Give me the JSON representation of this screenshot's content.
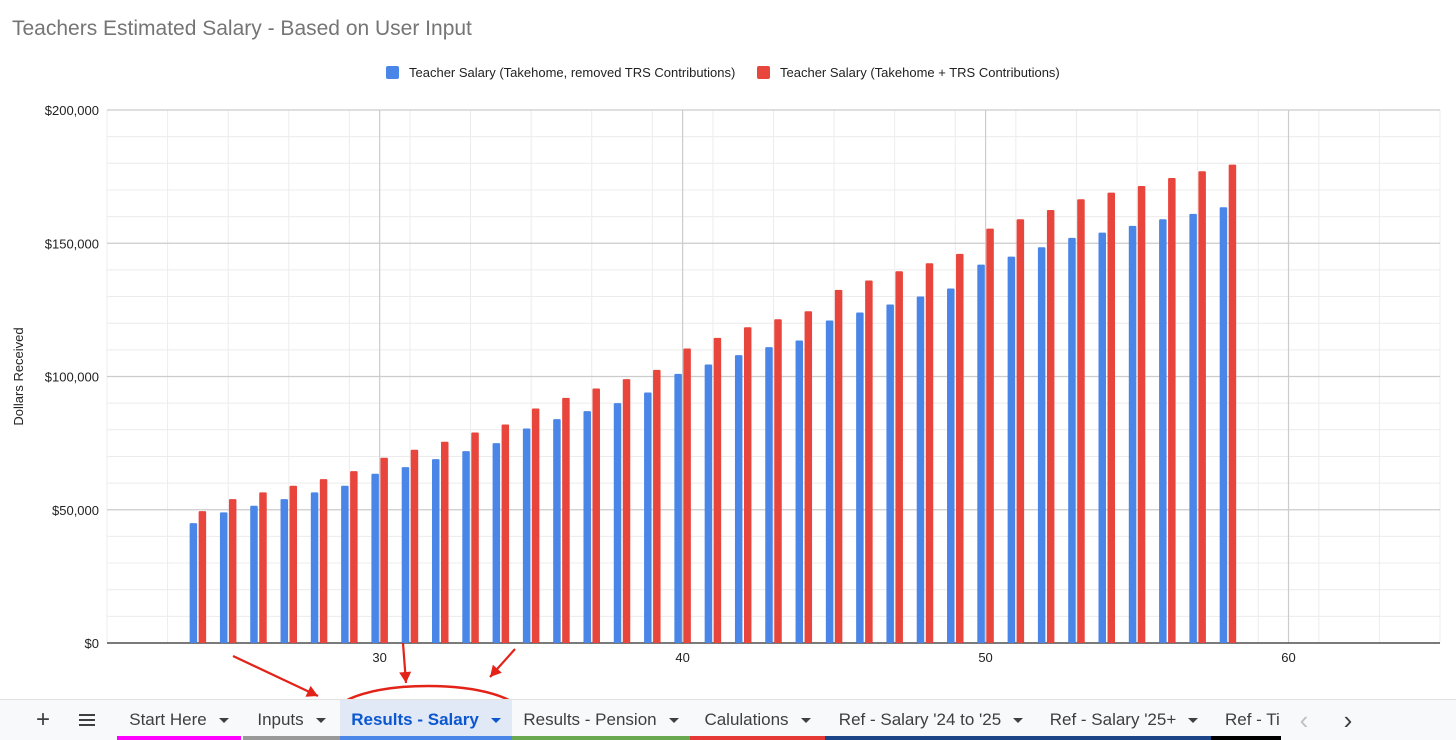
{
  "chart_data": {
    "type": "bar",
    "title": "Teachers Estimated Salary - Based on User Input",
    "ylabel": "Dollars Received",
    "xlabel": "",
    "x": [
      24,
      25,
      26,
      27,
      28,
      29,
      30,
      31,
      32,
      33,
      34,
      35,
      36,
      37,
      38,
      39,
      40,
      41,
      42,
      43,
      44,
      45,
      46,
      47,
      48,
      49,
      50,
      51,
      52,
      53,
      54,
      55,
      56,
      57,
      58
    ],
    "xlim": [
      21,
      65
    ],
    "ylim": [
      0,
      200000
    ],
    "x_ticks": [
      30,
      40,
      50,
      60
    ],
    "x_tick_labels": [
      "30",
      "40",
      "50",
      "60"
    ],
    "y_ticks": [
      0,
      50000,
      100000,
      150000,
      200000
    ],
    "y_tick_labels": [
      "$0",
      "$50,000",
      "$100,000",
      "$150,000",
      "$200,000"
    ],
    "grid": true,
    "legend_position": "top",
    "series": [
      {
        "name": "Teacher Salary (Takehome, removed TRS Contributions)",
        "color": "#4a86e8",
        "values": [
          45000,
          49000,
          51500,
          54000,
          56500,
          59000,
          63500,
          66000,
          69000,
          72000,
          75000,
          80500,
          84000,
          87000,
          90000,
          94000,
          101000,
          104500,
          108000,
          111000,
          113500,
          121000,
          124000,
          127000,
          130000,
          133000,
          142000,
          145000,
          148500,
          152000,
          154000,
          156500,
          159000,
          161000,
          163500
        ]
      },
      {
        "name": "Teacher Salary (Takehome + TRS Contributions)",
        "color": "#e8453c",
        "values": [
          49500,
          54000,
          56500,
          59000,
          61500,
          64500,
          69500,
          72500,
          75500,
          79000,
          82000,
          88000,
          92000,
          95500,
          99000,
          102500,
          110500,
          114500,
          118500,
          121500,
          124500,
          132500,
          136000,
          139500,
          142500,
          146000,
          155500,
          159000,
          162500,
          166500,
          169000,
          171500,
          174500,
          177000,
          179500
        ]
      }
    ]
  },
  "sheet_tabs": {
    "add_label": "+",
    "prev_symbol": "‹",
    "next_symbol": "›",
    "tabs": [
      {
        "label": "Start Here",
        "color": "#ff00ff"
      },
      {
        "label": "Inputs",
        "color": "#999999"
      },
      {
        "label": "Results - Salary",
        "color": "#4a86e8",
        "active": true
      },
      {
        "label": "Results - Pension",
        "color": "#6aa84f"
      },
      {
        "label": "Calulations",
        "color": "#e53935"
      },
      {
        "label": "Ref - Salary '24 to '25",
        "color": "#1c4587"
      },
      {
        "label": "Ref - Salary '25+",
        "color": "#1c4587"
      },
      {
        "label": "Ref - Ti",
        "color": "#000000"
      }
    ]
  },
  "annotation": {
    "arrow_color": "#e32218"
  }
}
